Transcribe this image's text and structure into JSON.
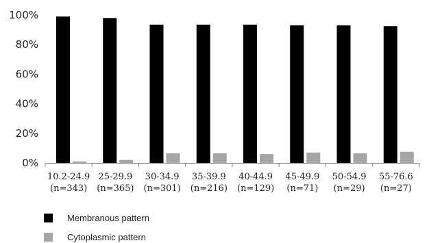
{
  "chart_data": {
    "type": "bar",
    "categories": [
      "10.2-24.9|(n=343)",
      "25-29.9|(n=365)",
      "30-34.9|(n=301)",
      "35-39.9|(n=216)",
      "40-44.9|(n=129)",
      "45-49.9|(n=71)",
      "50-54.9|(n=29)",
      "55-76.6|(n=27)"
    ],
    "category_lines": [
      [
        "10.2-24.9",
        "(n=343)"
      ],
      [
        "25-29.9",
        "(n=365)"
      ],
      [
        "30-34.9",
        "(n=301)"
      ],
      [
        "35-39.9",
        "(n=216)"
      ],
      [
        "40-44.9",
        "(n=129)"
      ],
      [
        "45-49.9",
        "(n=71)"
      ],
      [
        "50-54.9",
        "(n=29)"
      ],
      [
        "55-76.6",
        "(n=27)"
      ]
    ],
    "series": [
      {
        "name": "Membranous pattern",
        "color": "#000000",
        "values": [
          99,
          98,
          93.5,
          93.5,
          93.5,
          93,
          93,
          92.5
        ]
      },
      {
        "name": "Cytoplasmic pattern",
        "color": "#a6a6a6",
        "values": [
          1,
          2,
          6.5,
          6.5,
          6,
          7,
          6.5,
          7.5
        ]
      }
    ],
    "ylim": [
      0,
      100
    ],
    "yticks": [
      "0%",
      "20%",
      "40%",
      "60%",
      "80%",
      "100%"
    ],
    "legend_position": "bottom-left",
    "grid": false
  }
}
